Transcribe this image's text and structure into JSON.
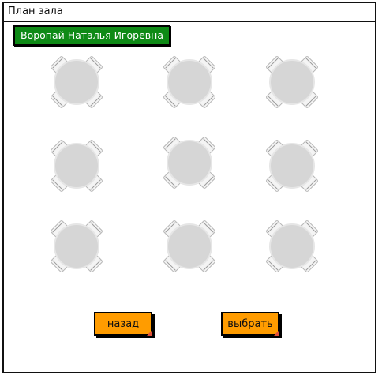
{
  "window": {
    "title": "План зала"
  },
  "user": {
    "name": "Воропай Наталья Игоревна",
    "color": "#0e8a16"
  },
  "tables": {
    "count": 9,
    "table_color": "#d6d6d6",
    "chair_color": "#f2f2f2"
  },
  "buttons": {
    "back_label": "назад",
    "select_label": "выбрать",
    "color": "#ff9c00"
  }
}
